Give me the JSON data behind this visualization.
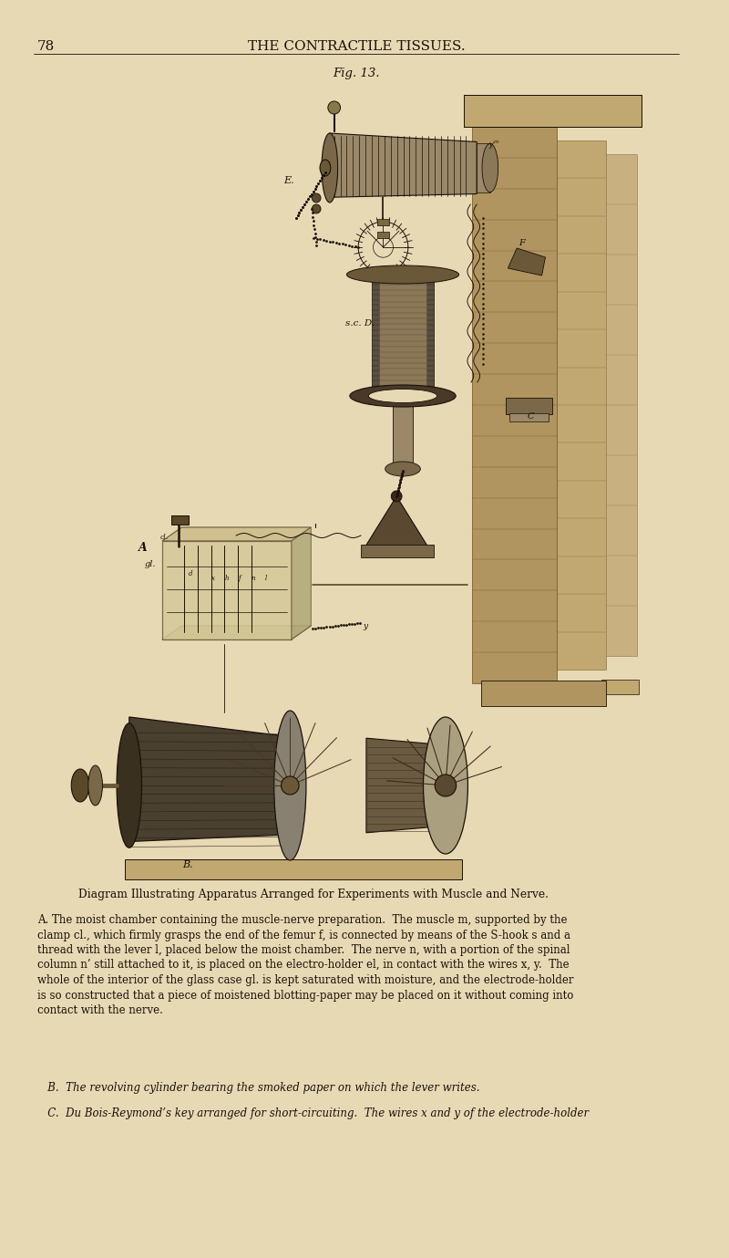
{
  "page_background": "#e8d9b5",
  "text_color": "#1a1008",
  "page_number": "78",
  "header_text": "THE CONTRACTILE TISSUES.",
  "fig_label": "Fig. 13.",
  "caption_title": "Diagram Illustrating Apparatus Arranged for Experiments with Muscle and Nerve.",
  "caption_A": "A. The moist chamber containing the muscle-nerve preparation.  The muscle m, supported by the\nclamp cl., which firmly grasps the end of the femur f, is connected by means of the S-hook s and a\nthread with the lever l, placed below the moist chamber.  The nerve n, with a portion of the spinal\ncolumn n’ still attached to it, is placed on the electro-holder el, in contact with the wires x, y.  The\nwhole of the interior of the glass case gl. is kept saturated with moisture, and the electrode-holder\nis so constructed that a piece of moistened blotting-paper may be placed on it without coming into\ncontact with the nerve.",
  "caption_B": "   B.  The revolving cylinder bearing the smoked paper on which the lever writes.",
  "caption_C": "   C.  Du Bois-Reymond’s key arranged for short-circuiting.  The wires x and y of the electrode-holder",
  "dark": "#1a1008",
  "wood_light": "#c8a870",
  "wood_mid": "#a08050",
  "wood_dark": "#7a5828",
  "metal_light": "#a09880",
  "metal_mid": "#808070",
  "metal_dark": "#504838"
}
